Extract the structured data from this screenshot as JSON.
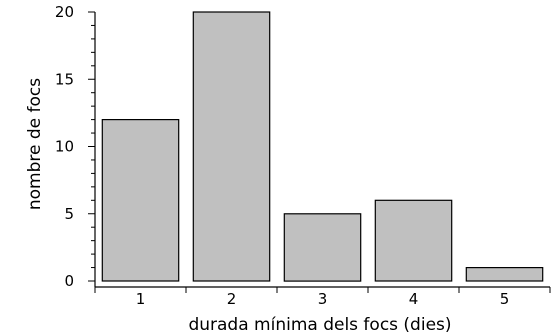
{
  "chart_data": {
    "type": "bar",
    "categories": [
      "1",
      "2",
      "3",
      "4",
      "5"
    ],
    "values": [
      12,
      20,
      5,
      6,
      1
    ],
    "xlabel": "durada mínima dels focs (dies)",
    "ylabel": "nombre de focs",
    "ylim": [
      0,
      20
    ],
    "y_ticks": [
      0,
      5,
      10,
      15,
      20
    ],
    "y_minor_step": 1,
    "bar_color": "#c0c0c0",
    "edge_color": "#000000",
    "grid": false,
    "legend": "none"
  }
}
